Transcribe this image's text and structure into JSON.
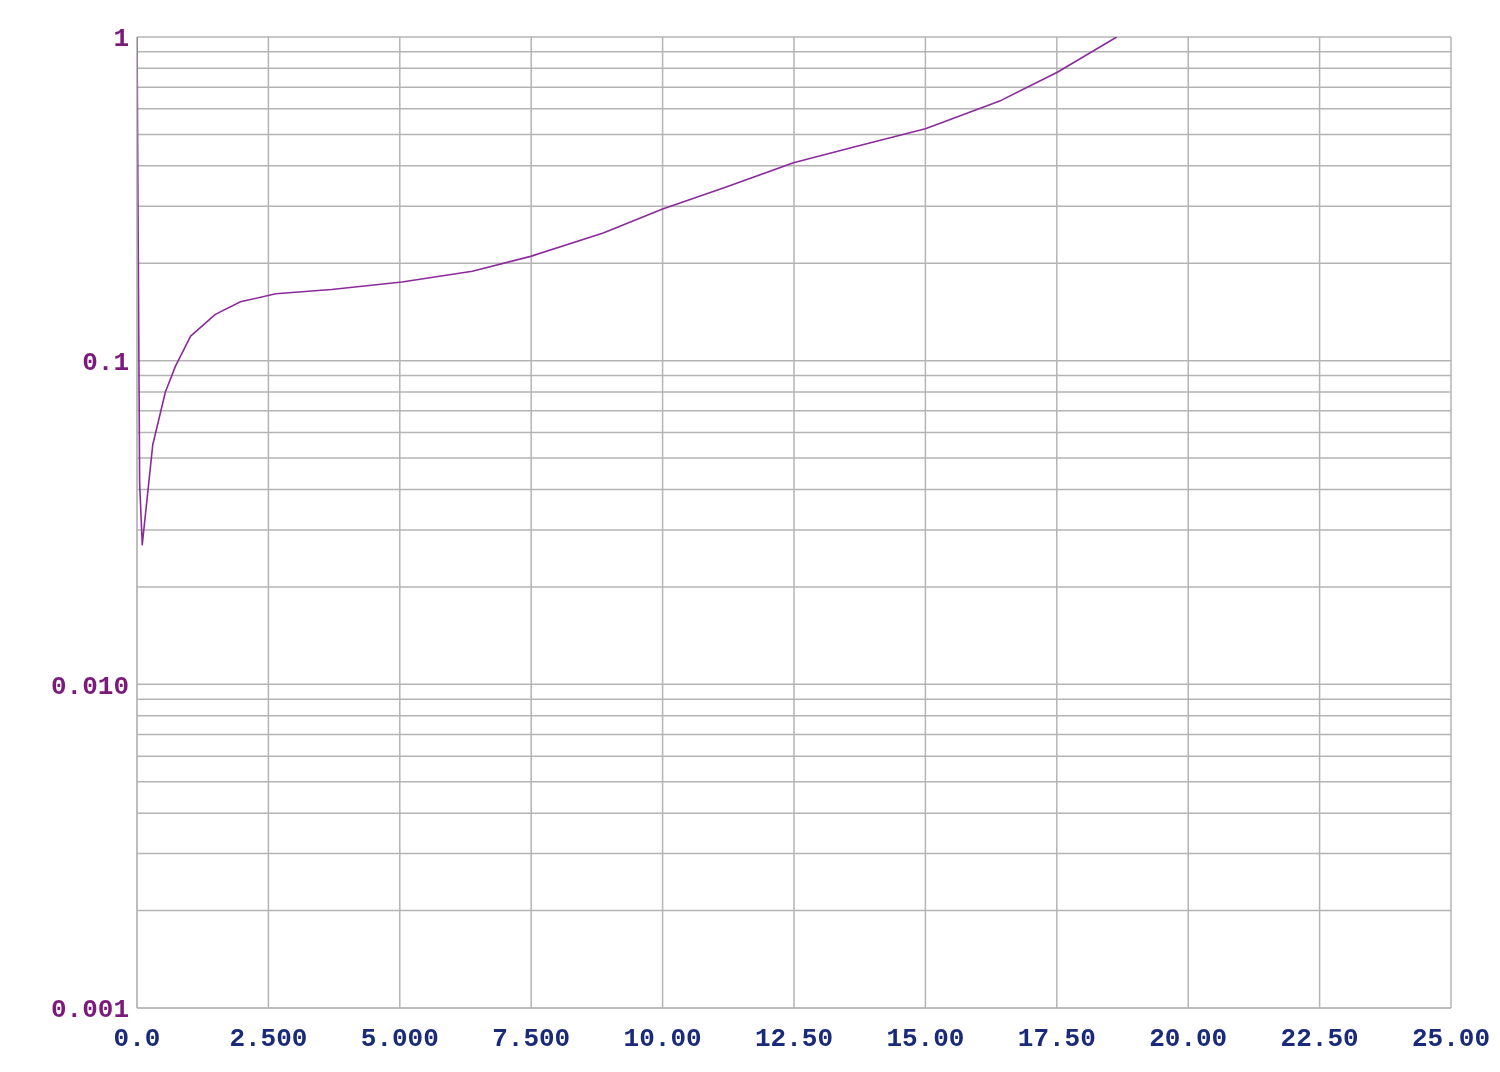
{
  "chart_data": {
    "type": "line",
    "log": "y",
    "grid": true,
    "marker": "none",
    "line_style": "solid",
    "x": [
      0,
      0.05,
      0.1,
      0.3,
      0.54,
      0.73,
      1.02,
      1.49,
      1.97,
      2.64,
      3.7,
      5.04,
      6.38,
      7.49,
      8.87,
      10,
      11.17,
      12.49,
      13.66,
      15,
      16.44,
      17.51,
      18.64
    ],
    "series": [
      {
        "color": "#8b2a9b",
        "values": [
          1,
          0.042,
          0.027,
          0.055,
          0.08,
          0.096,
          0.119,
          0.139,
          0.152,
          0.161,
          0.166,
          0.175,
          0.189,
          0.21,
          0.248,
          0.294,
          0.342,
          0.409,
          0.458,
          0.521,
          0.637,
          0.778,
          1.0
        ]
      }
    ],
    "xlim": [
      0,
      25
    ],
    "xticks": [
      {
        "value": 0,
        "label": "0.0"
      },
      {
        "value": 2.5,
        "label": "2.500"
      },
      {
        "value": 5,
        "label": "5.000"
      },
      {
        "value": 7.5,
        "label": "7.500"
      },
      {
        "value": 10,
        "label": "10.00"
      },
      {
        "value": 12.5,
        "label": "12.50"
      },
      {
        "value": 15,
        "label": "15.00"
      },
      {
        "value": 17.5,
        "label": "17.50"
      },
      {
        "value": 20,
        "label": "20.00"
      },
      {
        "value": 22.5,
        "label": "22.50"
      },
      {
        "value": 25,
        "label": "25.00"
      }
    ],
    "ylim": [
      0.001,
      1
    ],
    "yticks": [
      {
        "value": 0.001,
        "label": "0.001"
      },
      {
        "value": 0.002,
        "label": null
      },
      {
        "value": 0.003,
        "label": null
      },
      {
        "value": 0.004,
        "label": null
      },
      {
        "value": 0.005,
        "label": null
      },
      {
        "value": 0.006,
        "label": null
      },
      {
        "value": 0.007,
        "label": null
      },
      {
        "value": 0.008,
        "label": null
      },
      {
        "value": 0.009,
        "label": null
      },
      {
        "value": 0.01,
        "label": "0.010"
      },
      {
        "value": 0.02,
        "label": null
      },
      {
        "value": 0.03,
        "label": null
      },
      {
        "value": 0.04,
        "label": null
      },
      {
        "value": 0.05,
        "label": null
      },
      {
        "value": 0.06,
        "label": null
      },
      {
        "value": 0.07,
        "label": null
      },
      {
        "value": 0.08,
        "label": null
      },
      {
        "value": 0.09,
        "label": null
      },
      {
        "value": 0.1,
        "label": "0.1"
      },
      {
        "value": 0.2,
        "label": null
      },
      {
        "value": 0.3,
        "label": null
      },
      {
        "value": 0.4,
        "label": null
      },
      {
        "value": 0.5,
        "label": null
      },
      {
        "value": 0.6,
        "label": null
      },
      {
        "value": 0.7,
        "label": null
      },
      {
        "value": 0.8,
        "label": null
      },
      {
        "value": 0.9,
        "label": null
      },
      1
    ]
  }
}
